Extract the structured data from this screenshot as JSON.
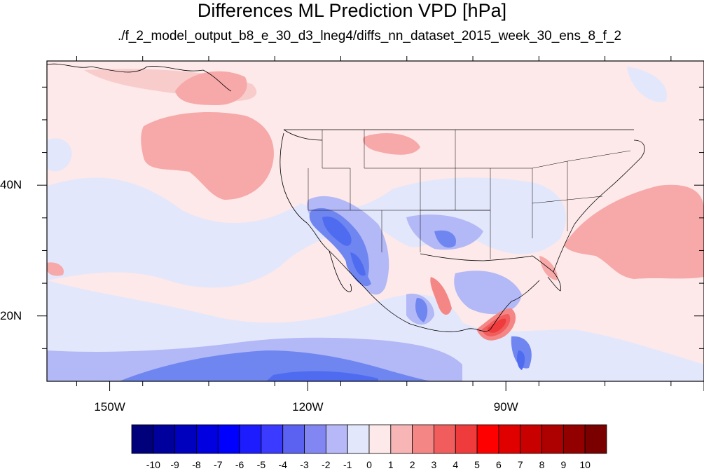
{
  "title": "Differences ML Prediction VPD [hPa]",
  "subtitle": "./f_2_model_output_b8_e_30_d3_lneg4/diffs_nn_dataset_2015_week_30_ens_8_f_2",
  "map": {
    "projection": "cylindrical-equidistant",
    "lon_range": [
      -159.5,
      -60.0
    ],
    "lat_range": [
      10.0,
      59.0
    ],
    "lat_ticks": [
      {
        "value": 40,
        "label": "40N"
      },
      {
        "value": 20,
        "label": "20N"
      }
    ],
    "lon_ticks": [
      {
        "value": -150,
        "label": "150W"
      },
      {
        "value": -120,
        "label": "120W"
      },
      {
        "value": -90,
        "label": "90W"
      }
    ],
    "background_color": "#fde9e9",
    "regions": [
      {
        "name": "north-pacific-positive",
        "value": 2,
        "color": "#f7a8a8"
      },
      {
        "name": "western-atlantic-positive",
        "value": 2,
        "color": "#f7a8a8"
      },
      {
        "name": "gulf-of-mexico-positive",
        "value": 6,
        "color": "#ee3c3c"
      },
      {
        "name": "southwest-us-negative",
        "value": -4,
        "color": "#4f6cf0"
      },
      {
        "name": "baja-negative",
        "value": -4,
        "color": "#4f6cf0"
      },
      {
        "name": "eastern-pacific-negative",
        "value": -3,
        "color": "#6f86f1"
      },
      {
        "name": "central-us-negative",
        "value": -1,
        "color": "#e3e7fb"
      }
    ]
  },
  "colorbar": {
    "labels": [
      "-10",
      "-9",
      "-8",
      "-7",
      "-6",
      "-5",
      "-4",
      "-3",
      "-2",
      "-1",
      "0",
      "1",
      "2",
      "3",
      "4",
      "5",
      "6",
      "7",
      "8",
      "9",
      "10"
    ],
    "colors": [
      "#00007a",
      "#00009c",
      "#0000bf",
      "#0000e0",
      "#0000ff",
      "#1c1cff",
      "#3b3bff",
      "#5b61f0",
      "#8186f2",
      "#b6b8f7",
      "#e3e7fb",
      "#fde9e9",
      "#f8b5b5",
      "#f58686",
      "#f15d5d",
      "#ef3b3b",
      "#ff0000",
      "#e00000",
      "#c80000",
      "#ad0000",
      "#920000",
      "#7a0000"
    ]
  }
}
